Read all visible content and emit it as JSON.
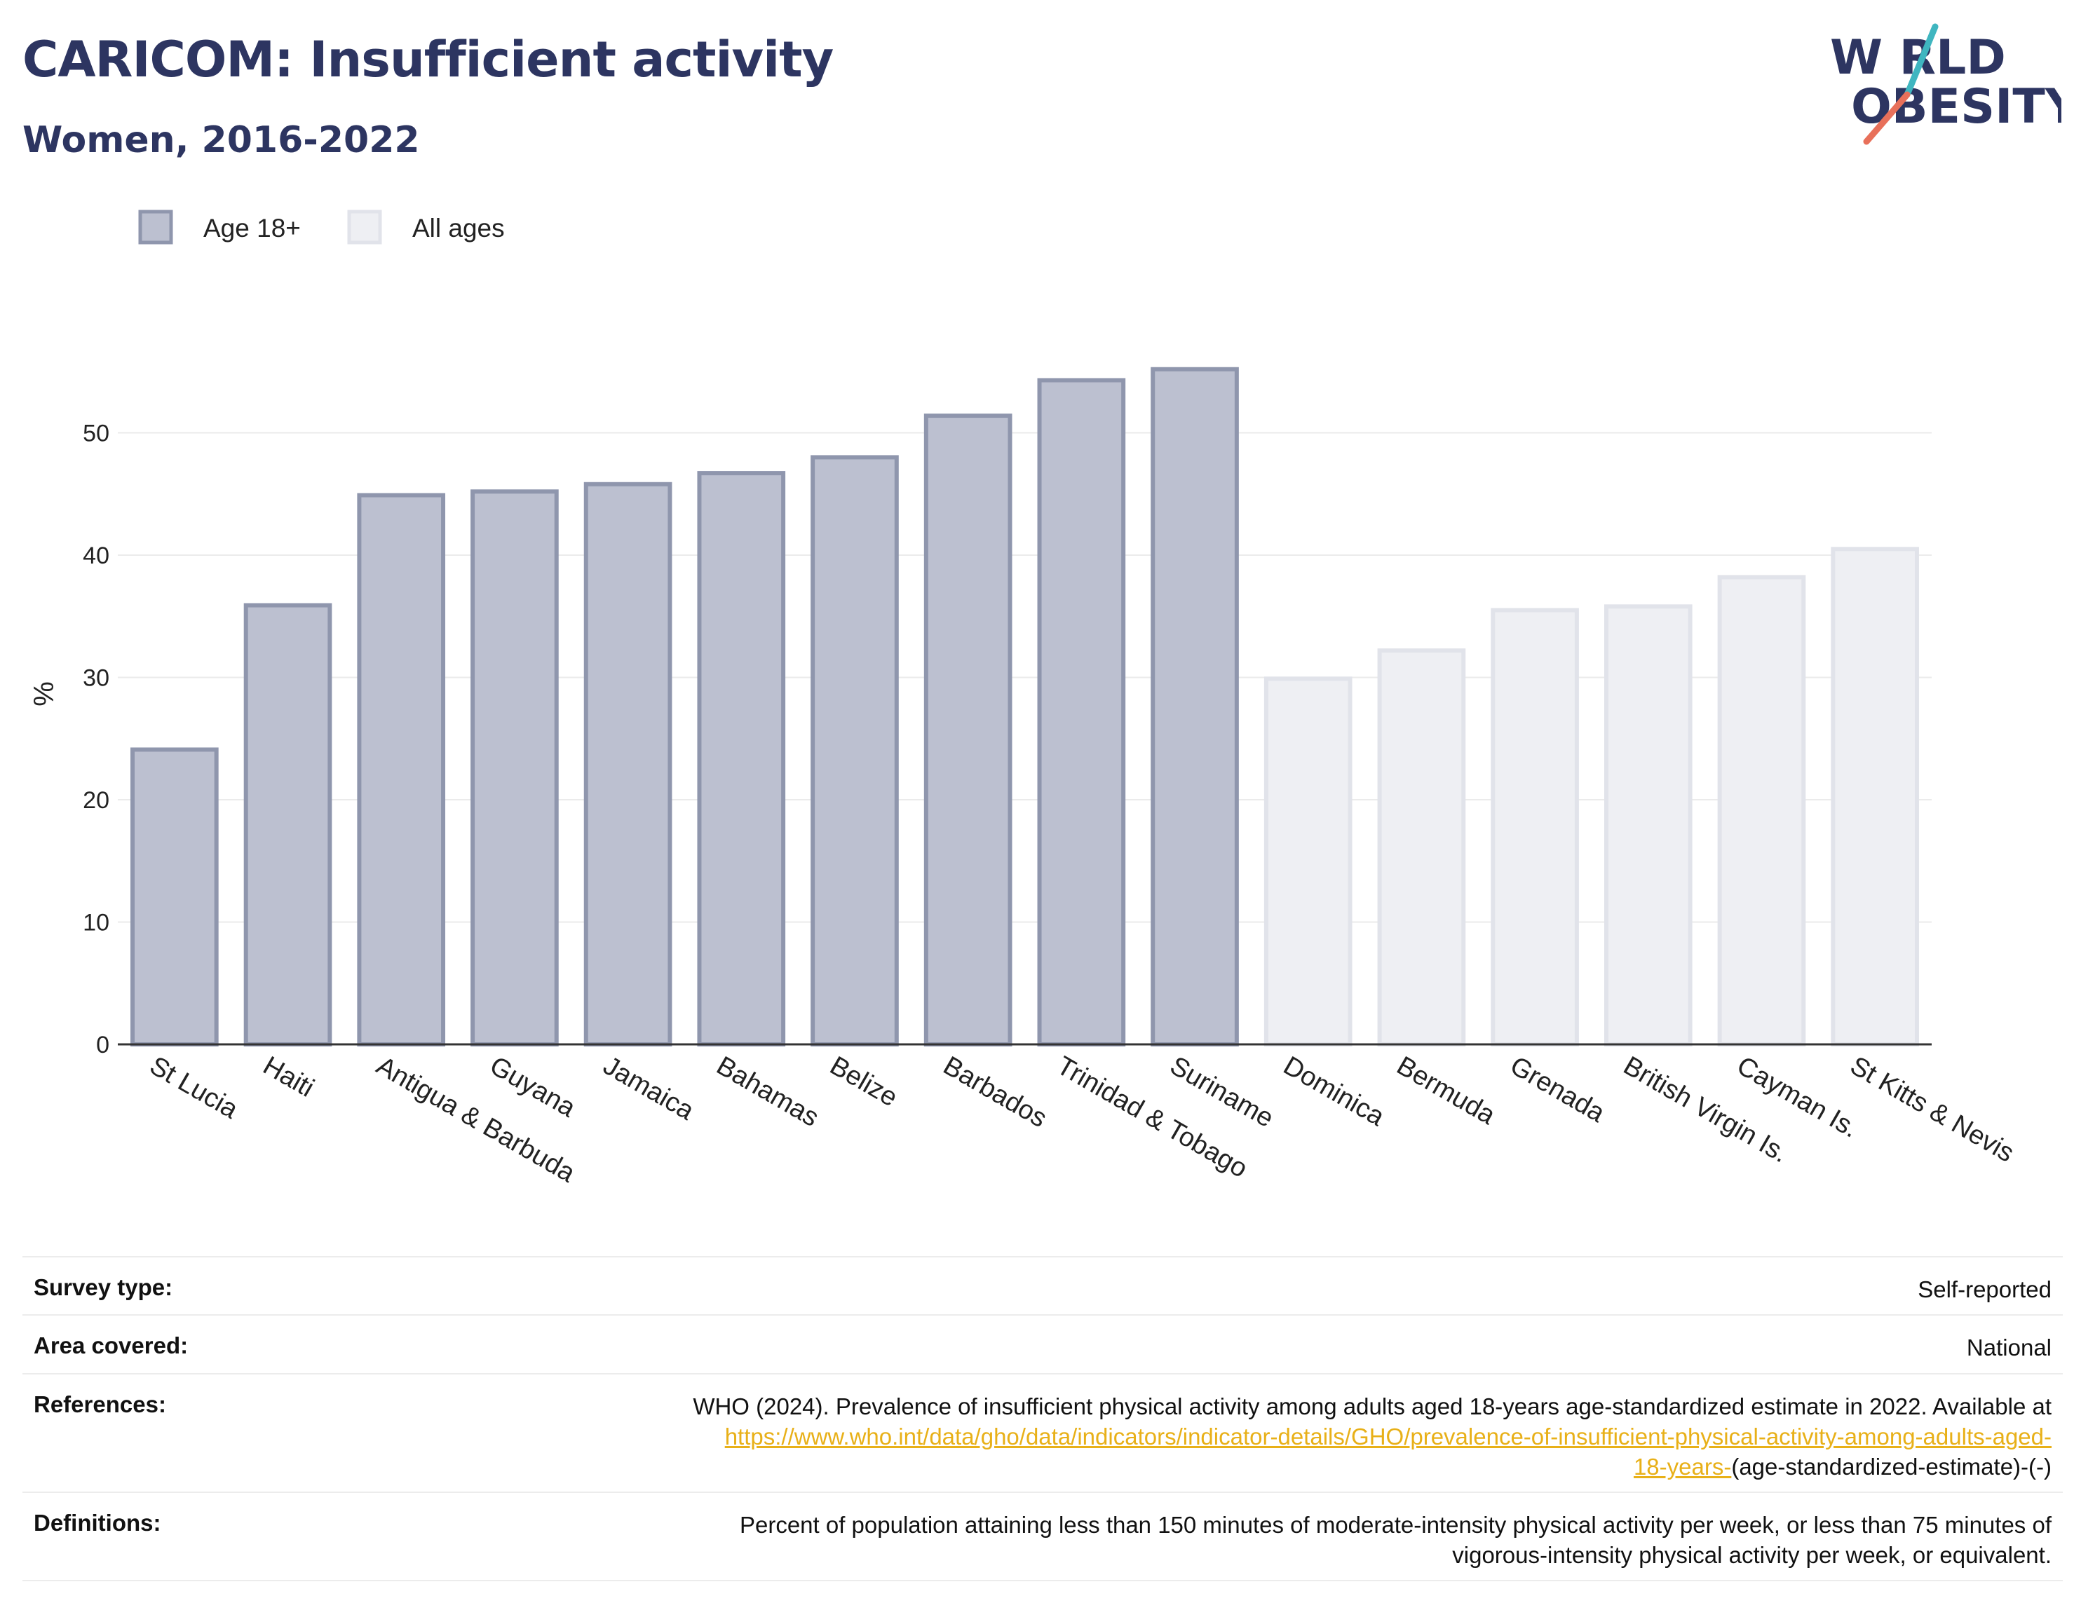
{
  "header": {
    "title": "CARICOM: Insufficient activity",
    "subtitle": "Women, 2016-2022"
  },
  "logo": {
    "line1": "W RLD",
    "line2": "OBESITY",
    "colors": {
      "text": "#2d3561",
      "slash_red": "#e8705a",
      "slash_teal": "#3fb6c0"
    }
  },
  "legend": [
    {
      "label": "Age 18+",
      "color": "#bcc0d0",
      "stroke": "#8f96ad"
    },
    {
      "label": "All ages",
      "color": "#eeeff3",
      "stroke": "#e1e3ea"
    }
  ],
  "chart_data": {
    "type": "bar",
    "ylabel": "%",
    "ylim": [
      0,
      60
    ],
    "yticks": [
      0,
      10,
      20,
      30,
      40,
      50
    ],
    "grid": true,
    "legend_position": "top-left",
    "categories": [
      "St Lucia",
      "Haiti",
      "Antigua & Barbuda",
      "Guyana",
      "Jamaica",
      "Bahamas",
      "Belize",
      "Barbados",
      "Trinidad & Tobago",
      "Suriname",
      "Dominica",
      "Bermuda",
      "Grenada",
      "British Virgin Is.",
      "Cayman Is.",
      "St Kitts & Nevis"
    ],
    "values": [
      24.1,
      35.9,
      44.9,
      45.2,
      45.8,
      46.7,
      48.0,
      51.4,
      54.3,
      55.2,
      29.9,
      32.2,
      35.5,
      35.8,
      38.2,
      40.5
    ],
    "series_group": [
      "Age 18+",
      "Age 18+",
      "Age 18+",
      "Age 18+",
      "Age 18+",
      "Age 18+",
      "Age 18+",
      "Age 18+",
      "Age 18+",
      "Age 18+",
      "All ages",
      "All ages",
      "All ages",
      "All ages",
      "All ages",
      "All ages"
    ]
  },
  "info": {
    "survey_type": {
      "label": "Survey type:",
      "value": "Self-reported"
    },
    "area_covered": {
      "label": "Area covered:",
      "value": "National"
    },
    "references": {
      "label": "References:",
      "text": "WHO (2024). Prevalence of insufficient physical activity among adults aged 18-years age-standardized estimate in 2022. Available at",
      "link_line1": "https://www.who.int/data/gho/data/indicators/indicator-details/GHO/prevalence-of-insufficient-physical-activity-among-adults-aged-",
      "link_line2": "18-years-",
      "suffix": "(age-standardized-estimate)-(-)"
    },
    "definitions": {
      "label": "Definitions:",
      "line1": "Percent of population attaining less than 150 minutes of moderate-intensity physical activity per week, or less than 75 minutes of",
      "line2": "vigorous-intensity physical activity per week, or equivalent."
    }
  }
}
